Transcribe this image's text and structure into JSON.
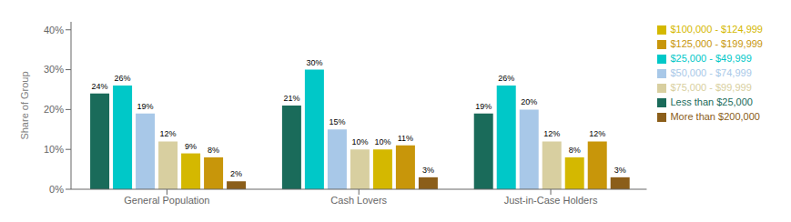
{
  "chart_data": {
    "type": "bar",
    "ylabel": "Share of Group",
    "categories": [
      "General Population",
      "Cash Lovers",
      "Just-in-Case Holders"
    ],
    "series": [
      {
        "name": "Less than $25,000",
        "color": "#1A6B5A",
        "values": [
          24,
          21,
          19
        ],
        "value_labels": [
          "24%",
          "21%",
          "19%"
        ]
      },
      {
        "name": "$25,000 - $49,999",
        "color": "#00C8C8",
        "values": [
          26,
          30,
          26
        ],
        "value_labels": [
          "26%",
          "30%",
          "26%"
        ]
      },
      {
        "name": "$50,000 - $74,999",
        "color": "#A8C8E8",
        "values": [
          19,
          15,
          20
        ],
        "value_labels": [
          "19%",
          "15%",
          "20%"
        ]
      },
      {
        "name": "$75,000 - $99,999",
        "color": "#D8CFA0",
        "values": [
          12,
          10,
          12
        ],
        "value_labels": [
          "12%",
          "10%",
          "12%"
        ]
      },
      {
        "name": "$100,000 - $124,999",
        "color": "#D4B800",
        "values": [
          9,
          10,
          8
        ],
        "value_labels": [
          "9%",
          "10%",
          "8%"
        ]
      },
      {
        "name": "$125,000 - $199,999",
        "color": "#C8960A",
        "values": [
          8,
          11,
          12
        ],
        "value_labels": [
          "8%",
          "11%",
          "12%"
        ]
      },
      {
        "name": "More than $200,000",
        "color": "#8B5E1A",
        "values": [
          2,
          3,
          3
        ],
        "value_labels": [
          "2%",
          "3%",
          "3%"
        ]
      }
    ],
    "ylim": [
      0,
      42
    ],
    "yticks": [
      {
        "value": 0,
        "label": "0%"
      },
      {
        "value": 10,
        "label": "10%"
      },
      {
        "value": 20,
        "label": "20%"
      },
      {
        "value": 30,
        "label": "30%"
      },
      {
        "value": 40,
        "label": "40%"
      }
    ],
    "data_labels": true,
    "legend": "right",
    "grid": false
  }
}
